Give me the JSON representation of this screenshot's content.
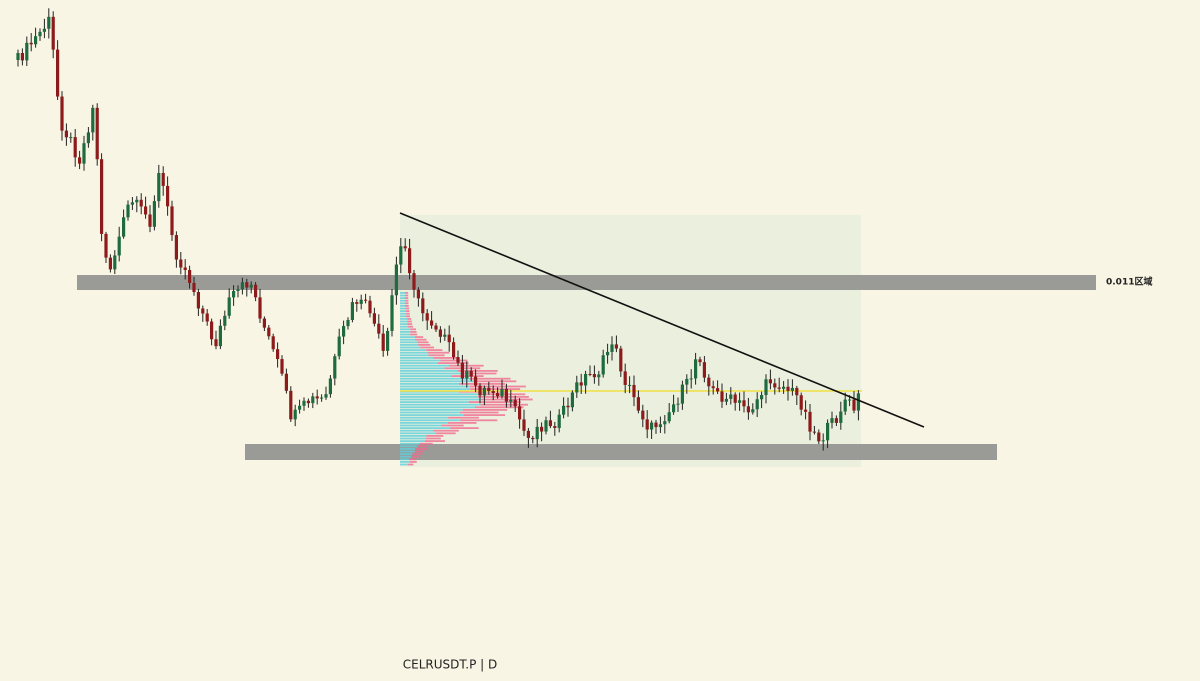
{
  "chart": {
    "zone_label": "0.011区域"
  },
  "footer": {
    "symbol_interval": "CELRUSDT.P | D"
  }
}
